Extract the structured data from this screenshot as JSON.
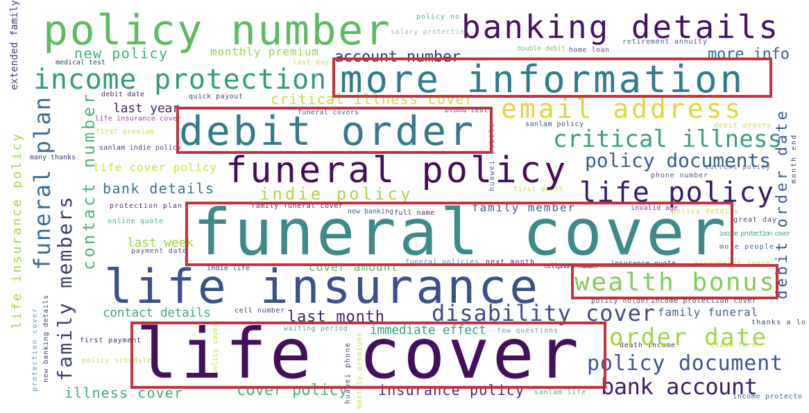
{
  "cloud": {
    "words": [
      {
        "id": "policy-number",
        "text": "policy number",
        "color": "#5cba61"
      },
      {
        "id": "banking-details",
        "text": "banking details",
        "color": "#471164"
      },
      {
        "id": "more-information",
        "text": "more information",
        "color": "#2e7b8d"
      },
      {
        "id": "email-address",
        "text": "email address",
        "color": "#e2d43a"
      },
      {
        "id": "debit-order",
        "text": "debit order",
        "color": "#337b8b"
      },
      {
        "id": "funeral-policy",
        "text": "funeral policy",
        "color": "#460c5a"
      },
      {
        "id": "critical-illness",
        "text": "critical illness",
        "color": "#3a9d7e"
      },
      {
        "id": "policy-documents",
        "text": "policy documents",
        "color": "#365c8d"
      },
      {
        "id": "life-policy",
        "text": "life policy",
        "color": "#3b1a6a"
      },
      {
        "id": "funeral-cover",
        "text": "funeral cover",
        "color": "#3d8a8a"
      },
      {
        "id": "life-insurance",
        "text": "life insurance",
        "color": "#3b4f8a"
      },
      {
        "id": "wealth-bonus",
        "text": "wealth bonus",
        "color": "#7ecc59"
      },
      {
        "id": "disability-cover",
        "text": "disability cover",
        "color": "#404a89"
      },
      {
        "id": "life-cover",
        "text": "life cover",
        "color": "#440f5d"
      },
      {
        "id": "order-date",
        "text": "order date",
        "color": "#9fd442"
      },
      {
        "id": "policy-document",
        "text": "policy document",
        "color": "#3a548c"
      },
      {
        "id": "bank-account",
        "text": "bank account",
        "color": "#3e1a65"
      },
      {
        "id": "income-protection",
        "text": "income protection",
        "color": "#2f9b7d"
      },
      {
        "id": "new-policy",
        "text": "new policy",
        "color": "#3fae75"
      },
      {
        "id": "monthly-premium",
        "text": "monthly premium",
        "color": "#9bd246"
      },
      {
        "id": "account-number",
        "text": "account number",
        "color": "#45306f"
      },
      {
        "id": "more-info",
        "text": "more info",
        "color": "#34648c"
      },
      {
        "id": "critical-illness-cover",
        "text": "critical illness cover",
        "color": "#c8d93a"
      },
      {
        "id": "last-year",
        "text": "last year",
        "color": "#43226b"
      },
      {
        "id": "life-cover-policy",
        "text": "life cover policy",
        "color": "#cfdd3c"
      },
      {
        "id": "indie-policy",
        "text": "indie policy",
        "color": "#a9d642"
      },
      {
        "id": "bank-details",
        "text": "bank details",
        "color": "#377090"
      },
      {
        "id": "family-member",
        "text": "family member",
        "color": "#3c5a8c"
      },
      {
        "id": "last-week",
        "text": "last week",
        "color": "#9fd442"
      },
      {
        "id": "cover-amount",
        "text": "cover amount",
        "color": "#5ab96c"
      },
      {
        "id": "contact-details",
        "text": "contact details",
        "color": "#41a679"
      },
      {
        "id": "last-month",
        "text": "last month",
        "color": "#42206a"
      },
      {
        "id": "family-funeral",
        "text": "family funeral",
        "color": "#3b5f8c"
      },
      {
        "id": "immediate-effect",
        "text": "immediate effect",
        "color": "#33a17d"
      },
      {
        "id": "illness-cover",
        "text": "illness cover",
        "color": "#3da977"
      },
      {
        "id": "cover-policy",
        "text": "cover policy",
        "color": "#3fb274"
      },
      {
        "id": "insurance-policy",
        "text": "insurance policy",
        "color": "#481f68"
      },
      {
        "id": "policy-no",
        "text": "policy no",
        "color": "#4da88a"
      },
      {
        "id": "salary-protection",
        "text": "salary protectio",
        "color": "#8fbcc7"
      },
      {
        "id": "double-debit",
        "text": "double debit",
        "color": "#6fc080"
      },
      {
        "id": "home-loan",
        "text": "home loan",
        "color": "#5a4a86"
      },
      {
        "id": "retirement-annuity",
        "text": "retirement annuity",
        "color": "#3a5a8a"
      },
      {
        "id": "medical-test",
        "text": "medical test",
        "color": "#3a3e70"
      },
      {
        "id": "last-day",
        "text": "last day",
        "color": "#c7d84a"
      },
      {
        "id": "debit-date",
        "text": "debit date",
        "color": "#4a2668"
      },
      {
        "id": "quick-payout",
        "text": "quick payout",
        "color": "#3b3f73"
      },
      {
        "id": "funeral-covers",
        "text": "funeral covers",
        "color": "#3a5f8b"
      },
      {
        "id": "blood-test",
        "text": "blood test",
        "color": "#6a3a7a"
      },
      {
        "id": "sanlam-policy",
        "text": "sanlam policy",
        "color": "#3b4f7a"
      },
      {
        "id": "debit-orders",
        "text": "debit orders",
        "color": "#c7d84a"
      },
      {
        "id": "life-insurance-cover",
        "text": "life insurance cover",
        "color": "#9a3ca0"
      },
      {
        "id": "first-premium",
        "text": "first premium",
        "color": "#c7d84a"
      },
      {
        "id": "sanlam-indie-policy",
        "text": "sanlam indie policy",
        "color": "#3a3e70"
      },
      {
        "id": "many-thanks",
        "text": "many thanks",
        "color": "#3a3e70"
      },
      {
        "id": "phone-number",
        "text": "phone number",
        "color": "#5a4a86"
      },
      {
        "id": "current-policy",
        "text": "current policy",
        "color": "#6a7ab0"
      },
      {
        "id": "first-debit",
        "text": "first debit",
        "color": "#c7d84a"
      },
      {
        "id": "protection-plan",
        "text": "protection plan",
        "color": "#4a2668"
      },
      {
        "id": "family-funeral-cover",
        "text": "family funeral cover",
        "color": "#4a2668"
      },
      {
        "id": "new-banking",
        "text": "new banking",
        "color": "#3a5f8b"
      },
      {
        "id": "full-name",
        "text": "full name",
        "color": "#4a2668"
      },
      {
        "id": "invalid-age",
        "text": "invalid age",
        "color": "#8a3aa0"
      },
      {
        "id": "policy-details",
        "text": "policy details",
        "color": "#c7d84a"
      },
      {
        "id": "great-day",
        "text": "great day",
        "color": "#3a3e70"
      },
      {
        "id": "online-quote",
        "text": "online quote",
        "color": "#3fae75"
      },
      {
        "id": "payment-date",
        "text": "payment date",
        "color": "#5a4a86"
      },
      {
        "id": "income-protection-cover-sm",
        "text": "income protection cover",
        "color": "#4da88a"
      },
      {
        "id": "more-people",
        "text": "more people",
        "color": "#3a5f8b"
      },
      {
        "id": "indie-life",
        "text": "indie life",
        "color": "#3a3e70"
      },
      {
        "id": "funeral-policies",
        "text": "funeral policies",
        "color": "#4a88b0"
      },
      {
        "id": "next-month",
        "text": "next month",
        "color": "#4a2668"
      },
      {
        "id": "cellphone-number",
        "text": "cellphone number",
        "color": "#4a2668"
      },
      {
        "id": "insurance-quote",
        "text": "insurance quote",
        "color": "#3a3e70"
      },
      {
        "id": "accountant-insurance",
        "text": "accountant insur",
        "color": "#c7d84a"
      },
      {
        "id": "cell-number",
        "text": "cell number",
        "color": "#3a3e70"
      },
      {
        "id": "policy-holder",
        "text": "policy holder",
        "color": "#5a4a86"
      },
      {
        "id": "income-protection-cover",
        "text": "income protection cover",
        "color": "#3a3e70"
      },
      {
        "id": "thanks-a-lot",
        "text": "thanks a lo",
        "color": "#3a3e70"
      },
      {
        "id": "first-payment",
        "text": "first payment",
        "color": "#4a2668"
      },
      {
        "id": "waiting-period",
        "text": "waiting period",
        "color": "#4da88a"
      },
      {
        "id": "few-questions",
        "text": "few questions",
        "color": "#4da88a"
      },
      {
        "id": "death-income",
        "text": "death income",
        "color": "#4a2668"
      },
      {
        "id": "claim-form",
        "text": "claim form",
        "color": "#c7d84a"
      },
      {
        "id": "policy-schedule",
        "text": "policy schedule",
        "color": "#c7d84a"
      },
      {
        "id": "sanlam-life",
        "text": "sanlam life",
        "color": "#4da88a"
      },
      {
        "id": "income-protecto",
        "text": "income protecto",
        "color": "#3a5f8b"
      },
      {
        "id": "extended-family",
        "text": "extended family",
        "color": "#3a3e70"
      },
      {
        "id": "life-insurance-policy",
        "text": "life insurance policy",
        "color": "#a0d444"
      },
      {
        "id": "funeral-plan",
        "text": "funeral plan",
        "color": "#3a6a90"
      },
      {
        "id": "family-members",
        "text": "family members",
        "color": "#3a3e70"
      },
      {
        "id": "contact-number",
        "text": "contact number",
        "color": "#4db37a"
      },
      {
        "id": "debit-order-date",
        "text": "debit order date",
        "color": "#3a5a8a"
      },
      {
        "id": "protection-cover",
        "text": "protection cover",
        "color": "#5a8fb8"
      },
      {
        "id": "new-banking-details",
        "text": "new banking details",
        "color": "#3a3e70"
      },
      {
        "id": "policy-cover-v",
        "text": "policy cover",
        "color": "#c7d84a"
      },
      {
        "id": "huawei-phone",
        "text": "huawei phone",
        "color": "#3a3e70"
      },
      {
        "id": "monthly-premiums",
        "text": "monthly premiums",
        "color": "#c7d84a"
      },
      {
        "id": "huawei-mobile",
        "text": "huawei mobile",
        "color": "#3a5f8b"
      },
      {
        "id": "month-end",
        "text": "month end",
        "color": "#3a3e70"
      }
    ]
  }
}
